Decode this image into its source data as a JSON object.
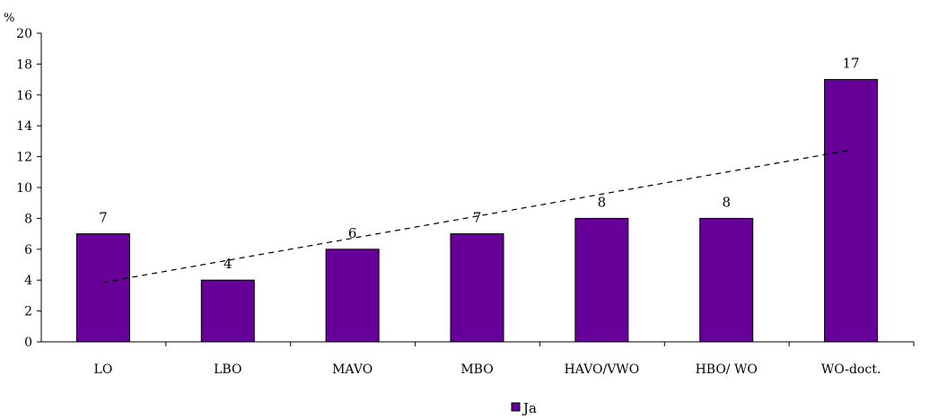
{
  "chart_data": {
    "type": "bar",
    "y_unit_label": "%",
    "categories": [
      "LO",
      "LBO",
      "MAVO",
      "MBO",
      "HAVO/VWO",
      "HBO/ WO",
      "WO-doct."
    ],
    "series": [
      {
        "name": "Ja",
        "values": [
          7,
          4,
          6,
          7,
          8,
          8,
          17
        ],
        "color": "#660099"
      }
    ],
    "data_labels": [
      "7",
      "4",
      "6",
      "7",
      "8",
      "8",
      "17"
    ],
    "ylim": [
      0,
      20
    ],
    "y_ticks": [
      0,
      2,
      4,
      6,
      8,
      10,
      12,
      14,
      16,
      18,
      20
    ],
    "trendline": {
      "type": "linear",
      "style": "dashed",
      "color": "#000000"
    },
    "legend_position": "bottom-center",
    "grid": false
  }
}
